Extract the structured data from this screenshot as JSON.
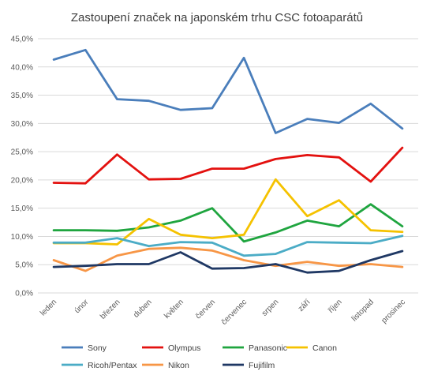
{
  "chart_data": {
    "type": "line",
    "title": "Zastoupení značek na japonském trhu CSC fotoaparátů",
    "xlabel": "",
    "ylabel": "",
    "categories": [
      "leden",
      "únor",
      "březen",
      "duben",
      "květen",
      "červen",
      "červenec",
      "srpen",
      "září",
      "říjen",
      "listopad",
      "prosinec"
    ],
    "y_ticks": [
      "0,0%",
      "5,0%",
      "10,0%",
      "15,0%",
      "20,0%",
      "25,0%",
      "30,0%",
      "35,0%",
      "40,0%",
      "45,0%"
    ],
    "ylim": [
      0,
      45
    ],
    "grid": true,
    "legend_position": "bottom",
    "series": [
      {
        "name": "Sony",
        "color": "#4a7ebb",
        "values": [
          41.3,
          43.0,
          34.3,
          34.0,
          32.4,
          32.7,
          41.6,
          28.3,
          30.8,
          30.1,
          33.5,
          29.1
        ]
      },
      {
        "name": "Olympus",
        "color": "#e3110f",
        "values": [
          19.5,
          19.4,
          24.5,
          20.1,
          20.2,
          22.0,
          22.0,
          23.7,
          24.4,
          24.0,
          19.7,
          25.7
        ]
      },
      {
        "name": "Panasonic",
        "color": "#1fa53f",
        "values": [
          11.1,
          11.1,
          11.0,
          11.6,
          12.8,
          15.0,
          9.1,
          10.7,
          12.8,
          11.8,
          15.7,
          11.8
        ]
      },
      {
        "name": "Canon",
        "color": "#f5c200",
        "values": [
          8.8,
          8.8,
          8.6,
          13.1,
          10.3,
          9.7,
          10.3,
          20.1,
          13.6,
          16.4,
          11.1,
          10.8
        ]
      },
      {
        "name": "Ricoh/Pentax",
        "color": "#4bacc6",
        "values": [
          8.9,
          8.9,
          9.7,
          8.3,
          9.0,
          8.9,
          6.6,
          6.9,
          9.0,
          8.9,
          8.8,
          10.1
        ]
      },
      {
        "name": "Nikon",
        "color": "#f79646",
        "values": [
          5.8,
          3.9,
          6.6,
          7.8,
          8.0,
          7.5,
          5.8,
          4.8,
          5.5,
          4.8,
          5.1,
          4.6
        ]
      },
      {
        "name": "Fujifilm",
        "color": "#1f3864",
        "values": [
          4.6,
          4.8,
          5.1,
          5.1,
          7.2,
          4.3,
          4.4,
          5.1,
          3.6,
          3.9,
          5.8,
          7.4
        ]
      }
    ]
  }
}
